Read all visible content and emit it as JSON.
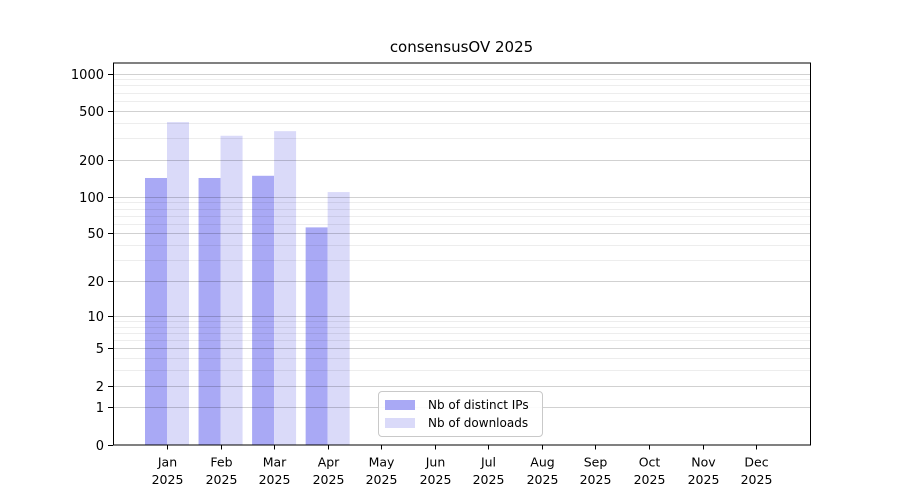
{
  "chart_data": {
    "type": "bar",
    "title": "consensusOV 2025",
    "months": [
      "Jan",
      "Feb",
      "Mar",
      "Apr",
      "May",
      "Jun",
      "Jul",
      "Aug",
      "Sep",
      "Oct",
      "Nov",
      "Dec"
    ],
    "year": "2025",
    "series": [
      {
        "name": "Nb of distinct IPs",
        "color": "#a9a9f5",
        "values": [
          142,
          142,
          148,
          56,
          null,
          null,
          null,
          null,
          null,
          null,
          null,
          null
        ]
      },
      {
        "name": "Nb of downloads",
        "color": "#dadaf9",
        "values": [
          404,
          313,
          341,
          109,
          null,
          null,
          null,
          null,
          null,
          null,
          null,
          null
        ]
      }
    ],
    "y_ticks": [
      0,
      1,
      2,
      5,
      10,
      20,
      50,
      100,
      200,
      500,
      1000
    ],
    "y_minor_gridlines": [
      3,
      4,
      6,
      7,
      8,
      9,
      30,
      40,
      60,
      70,
      80,
      90,
      300,
      400,
      600,
      700,
      800,
      900
    ],
    "y_scale": "pseudo-log log10(1+v)",
    "ylim": [
      0,
      1000
    ],
    "grid": true,
    "legend_position": "lower center inside plot",
    "axis_color": "#000000"
  }
}
